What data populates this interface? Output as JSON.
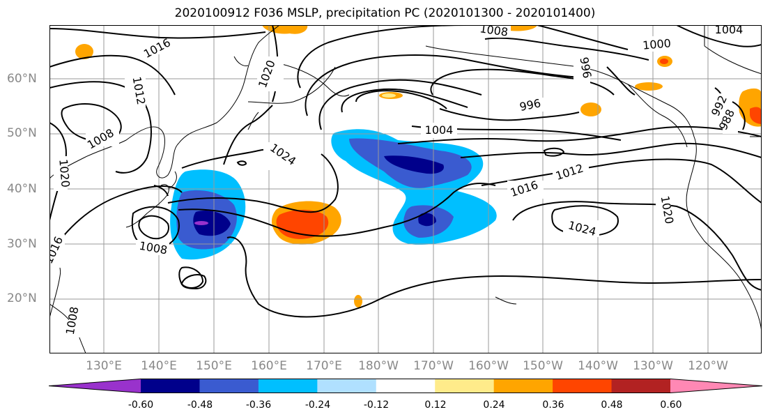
{
  "title": "2020100912 F036 MSLP, precipitation PC (2020101300 - 2020101400)",
  "lat_labels": [
    "60°N",
    "50°N",
    "40°N",
    "30°N",
    "20°N"
  ],
  "lon_labels": [
    "130°E",
    "140°E",
    "150°E",
    "160°E",
    "170°E",
    "180°W",
    "170°W",
    "160°W",
    "150°W",
    "140°W",
    "130°W",
    "120°W"
  ],
  "isobar_labels": [
    "1016",
    "1012",
    "1008",
    "1020",
    "1016",
    "1008",
    "1008",
    "1020",
    "1024",
    "1008",
    "1004",
    "996",
    "996",
    "1000",
    "1004",
    "992",
    "988",
    "1012",
    "1016",
    "1024",
    "1020"
  ],
  "colorbar": {
    "ticks": [
      "-0.60",
      "-0.48",
      "-0.36",
      "-0.24",
      "-0.12",
      "0.12",
      "0.24",
      "0.36",
      "0.48",
      "0.60"
    ],
    "colors": [
      "#9932cc",
      "#00008b",
      "#3a5bd0",
      "#00bfff",
      "#b0e0ff",
      "#ffffff",
      "#ffeb8a",
      "#ffa500",
      "#ff4500",
      "#b22222",
      "#ff88b4"
    ]
  }
}
